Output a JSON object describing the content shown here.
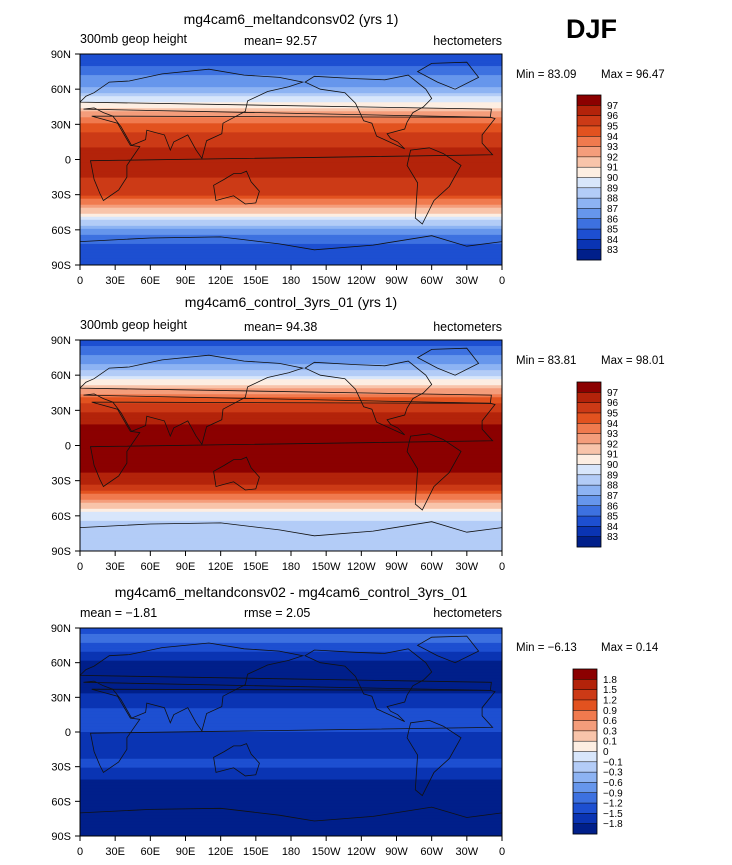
{
  "season": "DJF",
  "panel_titles": [
    "mg4cam6_meltandconsv02 (yrs 1)",
    "mg4cam6_control_3yrs_01 (yrs 1)",
    "mg4cam6_meltandconsv02 - mg4cam6_control_3yrs_01"
  ],
  "chart_data": [
    {
      "type": "heatmap",
      "title": "mg4cam6_meltandconsv02 (yrs 1)",
      "left_label": "300mb geop height",
      "center_label": "mean=  92.57",
      "right_label": "hectometers",
      "mean": 92.57,
      "min": 83.09,
      "max": 96.47,
      "min_label": "Min =  83.09",
      "max_label": "Max =  96.47",
      "x_ticks": [
        "0",
        "30E",
        "60E",
        "90E",
        "120E",
        "150E",
        "180",
        "150W",
        "120W",
        "90W",
        "60W",
        "30W",
        "0"
      ],
      "y_ticks": [
        "90N",
        "60N",
        "30N",
        "0",
        "30S",
        "60S",
        "90S"
      ],
      "colorbar_levels": [
        "97",
        "96",
        "95",
        "94",
        "93",
        "92",
        "91",
        "90",
        "89",
        "88",
        "87",
        "86",
        "85",
        "84",
        "83"
      ],
      "colorbar_colors": [
        "#8b0000",
        "#b3230a",
        "#cc3a16",
        "#e2521f",
        "#f07a4e",
        "#f49d7b",
        "#f8c4aa",
        "#fdeee2",
        "#d8e6fb",
        "#b3ccf7",
        "#8db3f3",
        "#6696ec",
        "#3d71e0",
        "#1d4fd1",
        "#0a34b3",
        "#001f8a"
      ],
      "band_values": [
        {
          "lat": 90,
          "v": 84.2
        },
        {
          "lat": 75,
          "v": 85.5
        },
        {
          "lat": 60,
          "v": 87.3
        },
        {
          "lat": 50,
          "v": 89.8
        },
        {
          "lat": 40,
          "v": 92.0
        },
        {
          "lat": 30,
          "v": 94.4
        },
        {
          "lat": 15,
          "v": 95.9
        },
        {
          "lat": 0,
          "v": 96.2
        },
        {
          "lat": -15,
          "v": 96.0
        },
        {
          "lat": -30,
          "v": 95.0
        },
        {
          "lat": -40,
          "v": 92.8
        },
        {
          "lat": -50,
          "v": 89.5
        },
        {
          "lat": -60,
          "v": 86.8
        },
        {
          "lat": -70,
          "v": 85.2
        },
        {
          "lat": -80,
          "v": 84.4
        },
        {
          "lat": -90,
          "v": 84.8
        }
      ]
    },
    {
      "type": "heatmap",
      "title": "mg4cam6_control_3yrs_01 (yrs 1)",
      "left_label": "300mb geop height",
      "center_label": "mean=  94.38",
      "right_label": "hectometers",
      "mean": 94.38,
      "min": 83.81,
      "max": 98.01,
      "min_label": "Min =  83.81",
      "max_label": "Max =  98.01",
      "x_ticks": [
        "0",
        "30E",
        "60E",
        "90E",
        "120E",
        "150E",
        "180",
        "150W",
        "120W",
        "90W",
        "60W",
        "30W",
        "0"
      ],
      "y_ticks": [
        "90N",
        "60N",
        "30N",
        "0",
        "30S",
        "60S",
        "90S"
      ],
      "colorbar_levels": [
        "97",
        "96",
        "95",
        "94",
        "93",
        "92",
        "91",
        "90",
        "89",
        "88",
        "87",
        "86",
        "85",
        "84",
        "83"
      ],
      "colorbar_colors": [
        "#8b0000",
        "#b3230a",
        "#cc3a16",
        "#e2521f",
        "#f07a4e",
        "#f49d7b",
        "#f8c4aa",
        "#fdeee2",
        "#d8e6fb",
        "#b3ccf7",
        "#8db3f3",
        "#6696ec",
        "#3d71e0",
        "#1d4fd1",
        "#0a34b3",
        "#001f8a"
      ],
      "band_values": [
        {
          "lat": 90,
          "v": 84.5
        },
        {
          "lat": 75,
          "v": 86.2
        },
        {
          "lat": 60,
          "v": 88.8
        },
        {
          "lat": 50,
          "v": 91.5
        },
        {
          "lat": 40,
          "v": 94.2
        },
        {
          "lat": 30,
          "v": 95.8
        },
        {
          "lat": 15,
          "v": 97.4
        },
        {
          "lat": 0,
          "v": 97.8
        },
        {
          "lat": -15,
          "v": 97.6
        },
        {
          "lat": -30,
          "v": 96.5
        },
        {
          "lat": -40,
          "v": 94.5
        },
        {
          "lat": -50,
          "v": 91.8
        },
        {
          "lat": -60,
          "v": 89.5
        },
        {
          "lat": -70,
          "v": 88.4
        },
        {
          "lat": -80,
          "v": 88.0
        },
        {
          "lat": -90,
          "v": 88.2
        }
      ]
    },
    {
      "type": "heatmap",
      "title": "mg4cam6_meltandconsv02 - mg4cam6_control_3yrs_01",
      "left_label": "mean =  −1.81",
      "center_label": "rmse =    2.05",
      "right_label": "hectometers",
      "mean": -1.81,
      "rmse": 2.05,
      "min": -6.13,
      "max": 0.14,
      "min_label": "Min =  −6.13",
      "max_label": "Max =    0.14",
      "x_ticks": [
        "0",
        "30E",
        "60E",
        "90E",
        "120E",
        "150E",
        "180",
        "150W",
        "120W",
        "90W",
        "60W",
        "30W",
        "0"
      ],
      "y_ticks": [
        "90N",
        "60N",
        "30N",
        "0",
        "30S",
        "60S",
        "90S"
      ],
      "colorbar_levels": [
        "1.8",
        "1.5",
        "1.2",
        "0.9",
        "0.6",
        "0.3",
        "0.1",
        "0",
        "−0.1",
        "−0.3",
        "−0.6",
        "−0.9",
        "−1.2",
        "−1.5",
        "−1.8"
      ],
      "colorbar_colors": [
        "#8b0000",
        "#b3230a",
        "#cc3a16",
        "#e2521f",
        "#f07a4e",
        "#f49d7b",
        "#f8c4aa",
        "#fdeee2",
        "#d8e6fb",
        "#b3ccf7",
        "#8db3f3",
        "#6696ec",
        "#3d71e0",
        "#1d4fd1",
        "#0a34b3",
        "#001f8a"
      ],
      "band_values": [
        {
          "lat": 90,
          "v": -1.5
        },
        {
          "lat": 82,
          "v": -0.9
        },
        {
          "lat": 75,
          "v": -1.3
        },
        {
          "lat": 60,
          "v": -1.9
        },
        {
          "lat": 45,
          "v": -2.3
        },
        {
          "lat": 30,
          "v": -1.7
        },
        {
          "lat": 15,
          "v": -1.4
        },
        {
          "lat": 0,
          "v": -1.5
        },
        {
          "lat": -15,
          "v": -1.55
        },
        {
          "lat": -30,
          "v": -1.45
        },
        {
          "lat": -45,
          "v": -1.9
        },
        {
          "lat": -60,
          "v": -2.4
        },
        {
          "lat": -75,
          "v": -3.2
        },
        {
          "lat": -90,
          "v": -3.4
        }
      ]
    }
  ]
}
